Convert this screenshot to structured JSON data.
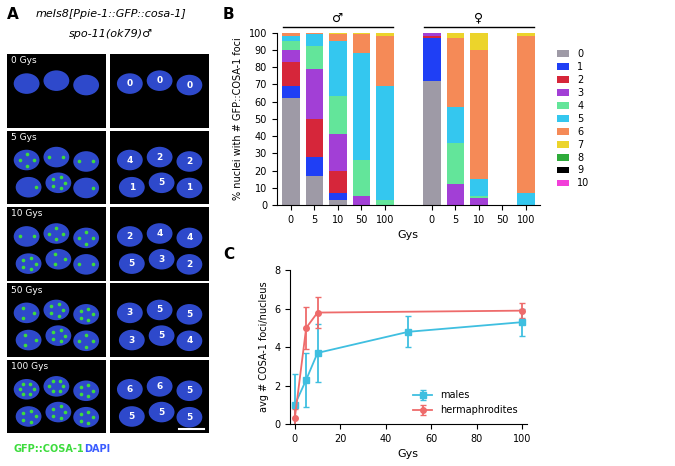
{
  "panel_A": {
    "panel_label": "A",
    "title_lines": [
      "meIs8[Ppie-1::GFP::cosa-1]",
      "spo-11(ok79)♂"
    ],
    "rows": [
      {
        "label": "0 Gys",
        "counts": [
          0,
          0,
          0
        ]
      },
      {
        "label": "5 Gys",
        "counts": [
          4,
          2,
          2,
          1,
          5,
          1
        ]
      },
      {
        "label": "10 Gys",
        "counts": [
          2,
          4,
          4,
          5,
          3,
          2
        ]
      },
      {
        "label": "50 Gys",
        "counts": [
          3,
          5,
          5,
          3,
          5,
          4
        ]
      },
      {
        "label": "100 Gys",
        "counts": [
          6,
          6,
          5,
          5,
          5,
          5
        ]
      }
    ],
    "channels": [
      "GFP::COSA-1",
      "DAPI"
    ],
    "channel_colors": [
      "#3ddc3d",
      "#3a5cff"
    ]
  },
  "chart_data": [
    {
      "type": "bar",
      "stacked": true,
      "panel_label": "B",
      "categories": [
        "0",
        "5",
        "10",
        "50",
        "100",
        null,
        "0",
        "5",
        "10",
        "50",
        "100"
      ],
      "group_labels": [
        "♂",
        "♀"
      ],
      "x_label": "Gys",
      "y_label": "% nuclei with # GFP::COSA-1 foci",
      "ylim": [
        0,
        100
      ],
      "yticks": [
        0,
        10,
        20,
        30,
        40,
        50,
        60,
        70,
        80,
        90,
        100
      ],
      "legend": "right",
      "series": [
        {
          "name": "0",
          "color": "#9e9aa6",
          "values": [
            62,
            17,
            3,
            0,
            0,
            null,
            72,
            0,
            0,
            null,
            0
          ]
        },
        {
          "name": "1",
          "color": "#1f3ff5",
          "values": [
            7,
            11,
            4,
            0,
            0,
            null,
            25,
            0,
            0,
            null,
            0
          ]
        },
        {
          "name": "2",
          "color": "#d6263a",
          "values": [
            14,
            22,
            13,
            0,
            0,
            null,
            1,
            0,
            0,
            null,
            0
          ]
        },
        {
          "name": "3",
          "color": "#a23fd6",
          "values": [
            7,
            29,
            21,
            5,
            0,
            null,
            2,
            12,
            4,
            null,
            0
          ]
        },
        {
          "name": "4",
          "color": "#63e59a",
          "values": [
            5,
            13,
            22,
            21,
            3,
            null,
            0,
            24,
            1,
            null,
            0
          ]
        },
        {
          "name": "5",
          "color": "#34c7ef",
          "values": [
            3,
            7,
            32,
            62,
            66,
            null,
            0,
            21,
            10,
            null,
            7
          ]
        },
        {
          "name": "6",
          "color": "#f58a57",
          "values": [
            2,
            1,
            4,
            11,
            29,
            null,
            0,
            40,
            75,
            null,
            91
          ]
        },
        {
          "name": "7",
          "color": "#ecd42b",
          "values": [
            0,
            0,
            1,
            1,
            2,
            null,
            0,
            3,
            10,
            null,
            2
          ]
        },
        {
          "name": "8",
          "color": "#2eab3a",
          "values": [
            0,
            0,
            0,
            0,
            0,
            null,
            0,
            0,
            0,
            null,
            0
          ]
        },
        {
          "name": "9",
          "color": "#000000",
          "values": [
            0,
            0,
            0,
            0,
            0,
            null,
            0,
            0,
            0,
            null,
            0
          ]
        },
        {
          "name": "10",
          "color": "#f23fd9",
          "values": [
            0,
            0,
            0,
            0,
            0,
            null,
            0,
            0,
            0,
            null,
            0
          ]
        }
      ]
    },
    {
      "type": "line",
      "panel_label": "C",
      "x_label": "Gys",
      "y_label": "avg # COSA-1 foci/nucleus",
      "xlim": [
        -2,
        102
      ],
      "xticks": [
        0,
        20,
        40,
        60,
        80,
        100
      ],
      "ylim": [
        0,
        8
      ],
      "yticks": [
        0,
        2,
        4,
        6,
        8
      ],
      "legend": "lower right",
      "series": [
        {
          "name": "males",
          "color": "#3fbfe0",
          "marker": "square",
          "x": [
            0,
            5,
            10,
            50,
            100
          ],
          "values": [
            1.0,
            2.3,
            3.7,
            4.8,
            5.3
          ],
          "errors": [
            1.6,
            1.4,
            1.5,
            0.8,
            0.7
          ]
        },
        {
          "name": "hermaphrodites",
          "color": "#ee6b6b",
          "marker": "circle",
          "x": [
            0,
            5,
            10,
            100
          ],
          "values": [
            0.3,
            5.0,
            5.8,
            5.9
          ],
          "errors": [
            0.5,
            1.1,
            0.8,
            0.4
          ]
        }
      ]
    }
  ]
}
